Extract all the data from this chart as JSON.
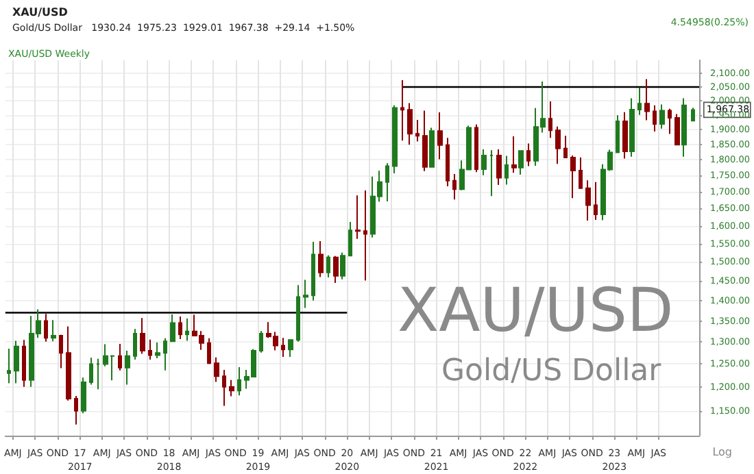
{
  "chart_data": {
    "type": "candlestick",
    "title": "XAU/USD",
    "subtitle": "Gold/US Dollar   1930.24  1975.23  1929.01  1967.38  +29.14  +1.50%",
    "x": [
      "2016-03-15",
      "2016-04-15",
      "2016-05-15",
      "2016-06-15",
      "2016-07-15",
      "2016-08-15",
      "2016-09-15",
      "2016-10-15",
      "2016-11-15",
      "2016-12-15",
      "2017-01-15",
      "2017-02-15",
      "2017-03-15",
      "2017-04-15",
      "2017-05-15",
      "2017-06-15",
      "2017-07-15",
      "2017-08-15",
      "2017-09-15",
      "2017-10-15",
      "2017-11-15",
      "2017-12-15",
      "2018-01-15",
      "2018-02-15",
      "2018-03-15",
      "2018-04-15",
      "2018-05-15",
      "2018-06-15",
      "2018-07-15",
      "2018-08-15",
      "2018-09-15",
      "2018-10-15",
      "2018-11-15",
      "2018-12-15",
      "2019-01-15",
      "2019-02-15",
      "2019-03-15",
      "2019-04-15",
      "2019-05-15",
      "2019-06-15",
      "2019-07-15",
      "2019-08-15",
      "2019-09-15",
      "2019-10-15",
      "2019-11-15",
      "2019-12-15",
      "2020-01-15",
      "2020-02-15",
      "2020-03-15",
      "2020-04-15",
      "2020-05-15",
      "2020-06-15",
      "2020-07-15",
      "2020-08-15",
      "2020-09-15",
      "2020-10-15",
      "2020-11-15",
      "2020-12-15",
      "2021-01-15",
      "2021-02-15",
      "2021-03-15",
      "2021-04-15",
      "2021-05-15",
      "2021-06-15",
      "2021-07-15",
      "2021-08-15",
      "2021-09-15",
      "2021-10-15",
      "2021-11-15",
      "2021-12-15",
      "2022-01-15",
      "2022-02-15",
      "2022-03-15",
      "2022-04-15",
      "2022-05-15",
      "2022-06-15",
      "2022-07-15",
      "2022-08-15",
      "2022-09-15",
      "2022-10-15",
      "2022-11-15",
      "2022-12-15",
      "2023-01-15",
      "2023-02-15",
      "2023-03-15",
      "2023-04-15",
      "2023-05-15",
      "2023-06-15",
      "2023-07-15",
      "2023-08-15",
      "2023-09-15",
      "2023-10-15",
      "2023-11-20"
    ],
    "ohlc": [
      [
        1230,
        1285,
        1208,
        1235
      ],
      [
        1235,
        1303,
        1208,
        1290
      ],
      [
        1290,
        1305,
        1200,
        1215
      ],
      [
        1215,
        1362,
        1200,
        1320
      ],
      [
        1320,
        1378,
        1310,
        1350
      ],
      [
        1350,
        1367,
        1301,
        1310
      ],
      [
        1310,
        1352,
        1302,
        1315
      ],
      [
        1315,
        1317,
        1241,
        1275
      ],
      [
        1275,
        1337,
        1171,
        1175
      ],
      [
        1175,
        1181,
        1122,
        1150
      ],
      [
        1150,
        1220,
        1145,
        1210
      ],
      [
        1210,
        1264,
        1205,
        1250
      ],
      [
        1250,
        1262,
        1195,
        1250
      ],
      [
        1250,
        1295,
        1245,
        1268
      ],
      [
        1268,
        1270,
        1214,
        1268
      ],
      [
        1268,
        1296,
        1236,
        1242
      ],
      [
        1242,
        1280,
        1205,
        1268
      ],
      [
        1268,
        1331,
        1260,
        1320
      ],
      [
        1320,
        1357,
        1273,
        1280
      ],
      [
        1280,
        1306,
        1260,
        1270
      ],
      [
        1270,
        1299,
        1263,
        1275
      ],
      [
        1275,
        1309,
        1236,
        1302
      ],
      [
        1302,
        1366,
        1302,
        1345
      ],
      [
        1345,
        1361,
        1307,
        1318
      ],
      [
        1318,
        1356,
        1303,
        1325
      ],
      [
        1325,
        1365,
        1315,
        1315
      ],
      [
        1315,
        1326,
        1282,
        1298
      ],
      [
        1298,
        1309,
        1250,
        1252
      ],
      [
        1252,
        1265,
        1211,
        1223
      ],
      [
        1223,
        1237,
        1160,
        1200
      ],
      [
        1200,
        1215,
        1180,
        1192
      ],
      [
        1192,
        1243,
        1182,
        1215
      ],
      [
        1215,
        1237,
        1196,
        1222
      ],
      [
        1222,
        1284,
        1221,
        1280
      ],
      [
        1280,
        1326,
        1276,
        1320
      ],
      [
        1320,
        1347,
        1310,
        1313
      ],
      [
        1313,
        1324,
        1281,
        1292
      ],
      [
        1292,
        1310,
        1266,
        1283
      ],
      [
        1283,
        1306,
        1266,
        1305
      ],
      [
        1305,
        1439,
        1301,
        1409
      ],
      [
        1409,
        1453,
        1382,
        1413
      ],
      [
        1413,
        1555,
        1400,
        1520
      ],
      [
        1520,
        1557,
        1460,
        1472
      ],
      [
        1472,
        1518,
        1459,
        1512
      ],
      [
        1512,
        1516,
        1445,
        1463
      ],
      [
        1463,
        1525,
        1454,
        1517
      ],
      [
        1517,
        1611,
        1517,
        1587
      ],
      [
        1587,
        1689,
        1563,
        1585
      ],
      [
        1585,
        1704,
        1451,
        1577
      ],
      [
        1577,
        1747,
        1567,
        1686
      ],
      [
        1686,
        1765,
        1670,
        1730
      ],
      [
        1730,
        1789,
        1671,
        1780
      ],
      [
        1780,
        1984,
        1757,
        1975
      ],
      [
        1975,
        2075,
        1863,
        1968
      ],
      [
        1968,
        1992,
        1849,
        1886
      ],
      [
        1886,
        1933,
        1860,
        1879
      ],
      [
        1879,
        1965,
        1764,
        1777
      ],
      [
        1777,
        1906,
        1775,
        1895
      ],
      [
        1895,
        1959,
        1802,
        1848
      ],
      [
        1848,
        1872,
        1717,
        1734
      ],
      [
        1734,
        1755,
        1677,
        1708
      ],
      [
        1708,
        1798,
        1705,
        1769
      ],
      [
        1769,
        1913,
        1767,
        1906
      ],
      [
        1906,
        1917,
        1761,
        1770
      ],
      [
        1770,
        1834,
        1751,
        1814
      ],
      [
        1814,
        1831,
        1687,
        1814
      ],
      [
        1814,
        1834,
        1721,
        1743
      ],
      [
        1743,
        1813,
        1722,
        1783
      ],
      [
        1783,
        1877,
        1759,
        1775
      ],
      [
        1775,
        1831,
        1753,
        1829
      ],
      [
        1829,
        1853,
        1780,
        1797
      ],
      [
        1797,
        1974,
        1781,
        1909
      ],
      [
        1909,
        2070,
        1890,
        1937
      ],
      [
        1937,
        1998,
        1872,
        1897
      ],
      [
        1897,
        1910,
        1787,
        1837
      ],
      [
        1837,
        1879,
        1805,
        1807
      ],
      [
        1807,
        1814,
        1681,
        1766
      ],
      [
        1766,
        1808,
        1711,
        1711
      ],
      [
        1711,
        1735,
        1615,
        1660
      ],
      [
        1660,
        1730,
        1617,
        1633
      ],
      [
        1633,
        1786,
        1616,
        1769
      ],
      [
        1769,
        1833,
        1765,
        1824
      ],
      [
        1824,
        1949,
        1823,
        1928
      ],
      [
        1928,
        1960,
        1804,
        1827
      ],
      [
        1827,
        2009,
        1810,
        1969
      ],
      [
        1969,
        2048,
        1950,
        1990
      ],
      [
        1990,
        2079,
        1932,
        1963
      ],
      [
        1963,
        1984,
        1893,
        1919
      ],
      [
        1919,
        1987,
        1903,
        1965
      ],
      [
        1965,
        1972,
        1885,
        1940
      ],
      [
        1940,
        1953,
        1849,
        1849
      ],
      [
        1849,
        2009,
        1810,
        1984
      ],
      [
        1930.24,
        1975.23,
        1929.01,
        1967.38
      ]
    ],
    "colors": [
      "#1f7a1f",
      "#1f7a1f",
      "#8b0000",
      "#1f7a1f",
      "#1f7a1f",
      "#8b0000",
      "#1f7a1f",
      "#8b0000",
      "#8b0000",
      "#8b0000",
      "#1f7a1f",
      "#1f7a1f",
      "#1f7a1f",
      "#1f7a1f",
      "#1f7a1f",
      "#8b0000",
      "#1f7a1f",
      "#1f7a1f",
      "#8b0000",
      "#8b0000",
      "#1f7a1f",
      "#1f7a1f",
      "#1f7a1f",
      "#8b0000",
      "#1f7a1f",
      "#8b0000",
      "#8b0000",
      "#8b0000",
      "#8b0000",
      "#8b0000",
      "#8b0000",
      "#1f7a1f",
      "#1f7a1f",
      "#1f7a1f",
      "#1f7a1f",
      "#8b0000",
      "#8b0000",
      "#8b0000",
      "#1f7a1f",
      "#1f7a1f",
      "#1f7a1f",
      "#1f7a1f",
      "#8b0000",
      "#1f7a1f",
      "#8b0000",
      "#1f7a1f",
      "#1f7a1f",
      "#8b0000",
      "#8b0000",
      "#1f7a1f",
      "#1f7a1f",
      "#1f7a1f",
      "#1f7a1f",
      "#8b0000",
      "#8b0000",
      "#8b0000",
      "#8b0000",
      "#1f7a1f",
      "#8b0000",
      "#8b0000",
      "#8b0000",
      "#1f7a1f",
      "#1f7a1f",
      "#8b0000",
      "#1f7a1f",
      "#1f7a1f",
      "#8b0000",
      "#1f7a1f",
      "#8b0000",
      "#1f7a1f",
      "#8b0000",
      "#1f7a1f",
      "#1f7a1f",
      "#8b0000",
      "#8b0000",
      "#8b0000",
      "#8b0000",
      "#8b0000",
      "#8b0000",
      "#8b0000",
      "#1f7a1f",
      "#1f7a1f",
      "#1f7a1f",
      "#8b0000",
      "#1f7a1f",
      "#1f7a1f",
      "#8b0000",
      "#8b0000",
      "#1f7a1f",
      "#8b0000",
      "#8b0000",
      "#1f7a1f",
      "#1f7a1f"
    ],
    "series": [
      {
        "type": "line",
        "x": [
          "2016-03-01",
          "2020-01-01"
        ],
        "values": [
          1370,
          1370
        ],
        "color": "#000000"
      },
      {
        "type": "line",
        "x": [
          "2020-08-15",
          "2023-12-15"
        ],
        "values": [
          2050,
          2050
        ],
        "color": "#000000"
      }
    ],
    "xlim": [
      "2016-03-01",
      "2023-12-15"
    ],
    "xticks": [
      {
        "value": "2016-04-01",
        "label": "AMJ"
      },
      {
        "value": "2016-07-01",
        "label": "JAS"
      },
      {
        "value": "2016-10-01",
        "label": "OND"
      },
      {
        "value": "2017-01-01",
        "label": "17\n2017"
      },
      {
        "value": "2017-04-01",
        "label": "AMJ"
      },
      {
        "value": "2017-07-01",
        "label": "JAS"
      },
      {
        "value": "2017-10-01",
        "label": "OND"
      },
      {
        "value": "2018-01-01",
        "label": "18\n2018"
      },
      {
        "value": "2018-04-01",
        "label": "AMJ"
      },
      {
        "value": "2018-07-01",
        "label": "JAS"
      },
      {
        "value": "2018-10-01",
        "label": "OND"
      },
      {
        "value": "2019-01-01",
        "label": "19\n2019"
      },
      {
        "value": "2019-04-01",
        "label": "AMJ"
      },
      {
        "value": "2019-07-01",
        "label": "JAS"
      },
      {
        "value": "2019-10-01",
        "label": "OND"
      },
      {
        "value": "2020-01-01",
        "label": "20\n2020"
      },
      {
        "value": "2020-04-01",
        "label": "AMJ"
      },
      {
        "value": "2020-07-01",
        "label": "JAS"
      },
      {
        "value": "2020-10-01",
        "label": "OND"
      },
      {
        "value": "2021-01-01",
        "label": "21\n2021"
      },
      {
        "value": "2021-04-01",
        "label": "AMJ"
      },
      {
        "value": "2021-07-01",
        "label": "JAS"
      },
      {
        "value": "2021-10-01",
        "label": "OND"
      },
      {
        "value": "2022-01-01",
        "label": "22\n2022"
      },
      {
        "value": "2022-04-01",
        "label": "AMJ"
      },
      {
        "value": "2022-07-01",
        "label": "JAS"
      },
      {
        "value": "2022-10-01",
        "label": "OND"
      },
      {
        "value": "2023-01-01",
        "label": "23\n2023"
      },
      {
        "value": "2023-04-01",
        "label": "AMJ"
      },
      {
        "value": "2023-07-01",
        "label": "JAS"
      }
    ],
    "ylim": [
      1100,
      2150
    ],
    "yticks": [
      {
        "value": 1150,
        "label": "1,150.00"
      },
      {
        "value": 1200,
        "label": "1,200.00"
      },
      {
        "value": 1250,
        "label": "1,250.00"
      },
      {
        "value": 1300,
        "label": "1,300.00"
      },
      {
        "value": 1350,
        "label": "1,350.00"
      },
      {
        "value": 1400,
        "label": "1,400.00"
      },
      {
        "value": 1450,
        "label": "1,450.00"
      },
      {
        "value": 1500,
        "label": "1,500.00"
      },
      {
        "value": 1550,
        "label": "1,550.00"
      },
      {
        "value": 1600,
        "label": "1,600.00"
      },
      {
        "value": 1650,
        "label": "1,650.00"
      },
      {
        "value": 1700,
        "label": "1,700.00"
      },
      {
        "value": 1750,
        "label": "1,750.00"
      },
      {
        "value": 1800,
        "label": "1,800.00"
      },
      {
        "value": 1850,
        "label": "1,850.00"
      },
      {
        "value": 1900,
        "label": "1,900.00"
      },
      {
        "value": 1950,
        "label": "1,950.00"
      },
      {
        "value": 2000,
        "label": "2,000.00"
      },
      {
        "value": 2050,
        "label": "2,050.00"
      },
      {
        "value": 2100,
        "label": "2,100.00"
      }
    ],
    "log": "y",
    "grid": true,
    "annotations": [
      "XAU/USD Weekly",
      "4.54958(0.25%)",
      "XAU/USD",
      "Gold/US Dollar",
      "Log",
      {
        "text": "1,967.38",
        "x": "2023-11-20",
        "y": 1967.38
      }
    ]
  }
}
